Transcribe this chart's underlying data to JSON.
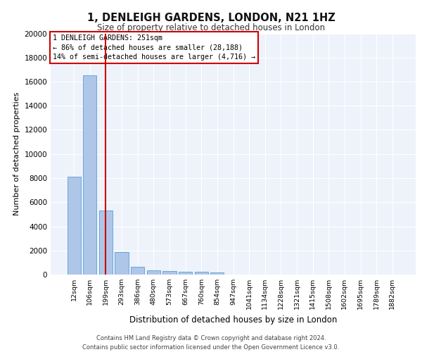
{
  "title_line1": "1, DENLEIGH GARDENS, LONDON, N21 1HZ",
  "title_line2": "Size of property relative to detached houses in London",
  "xlabel": "Distribution of detached houses by size in London",
  "ylabel": "Number of detached properties",
  "bar_values": [
    8100,
    16500,
    5300,
    1850,
    650,
    350,
    270,
    220,
    210,
    180,
    0,
    0,
    0,
    0,
    0,
    0,
    0,
    0,
    0,
    0
  ],
  "bar_labels": [
    "12sqm",
    "106sqm",
    "199sqm",
    "293sqm",
    "386sqm",
    "480sqm",
    "573sqm",
    "667sqm",
    "760sqm",
    "854sqm",
    "947sqm",
    "1041sqm",
    "1134sqm",
    "1228sqm",
    "1321sqm",
    "1415sqm",
    "1508sqm",
    "1602sqm",
    "1695sqm",
    "1789sqm",
    "1882sqm"
  ],
  "bar_color": "#aec6e8",
  "bar_edge_color": "#5a9fd4",
  "vline_x": 2,
  "vline_color": "#cc0000",
  "annotation_text": "1 DENLEIGH GARDENS: 251sqm\n← 86% of detached houses are smaller (28,188)\n14% of semi-detached houses are larger (4,716) →",
  "annotation_box_color": "#cc0000",
  "background_color": "#eef2fb",
  "grid_color": "#ffffff",
  "footer_text": "Contains HM Land Registry data © Crown copyright and database right 2024.\nContains public sector information licensed under the Open Government Licence v3.0.",
  "ylim": [
    0,
    20000
  ],
  "yticks": [
    0,
    2000,
    4000,
    6000,
    8000,
    10000,
    12000,
    14000,
    16000,
    18000,
    20000
  ]
}
